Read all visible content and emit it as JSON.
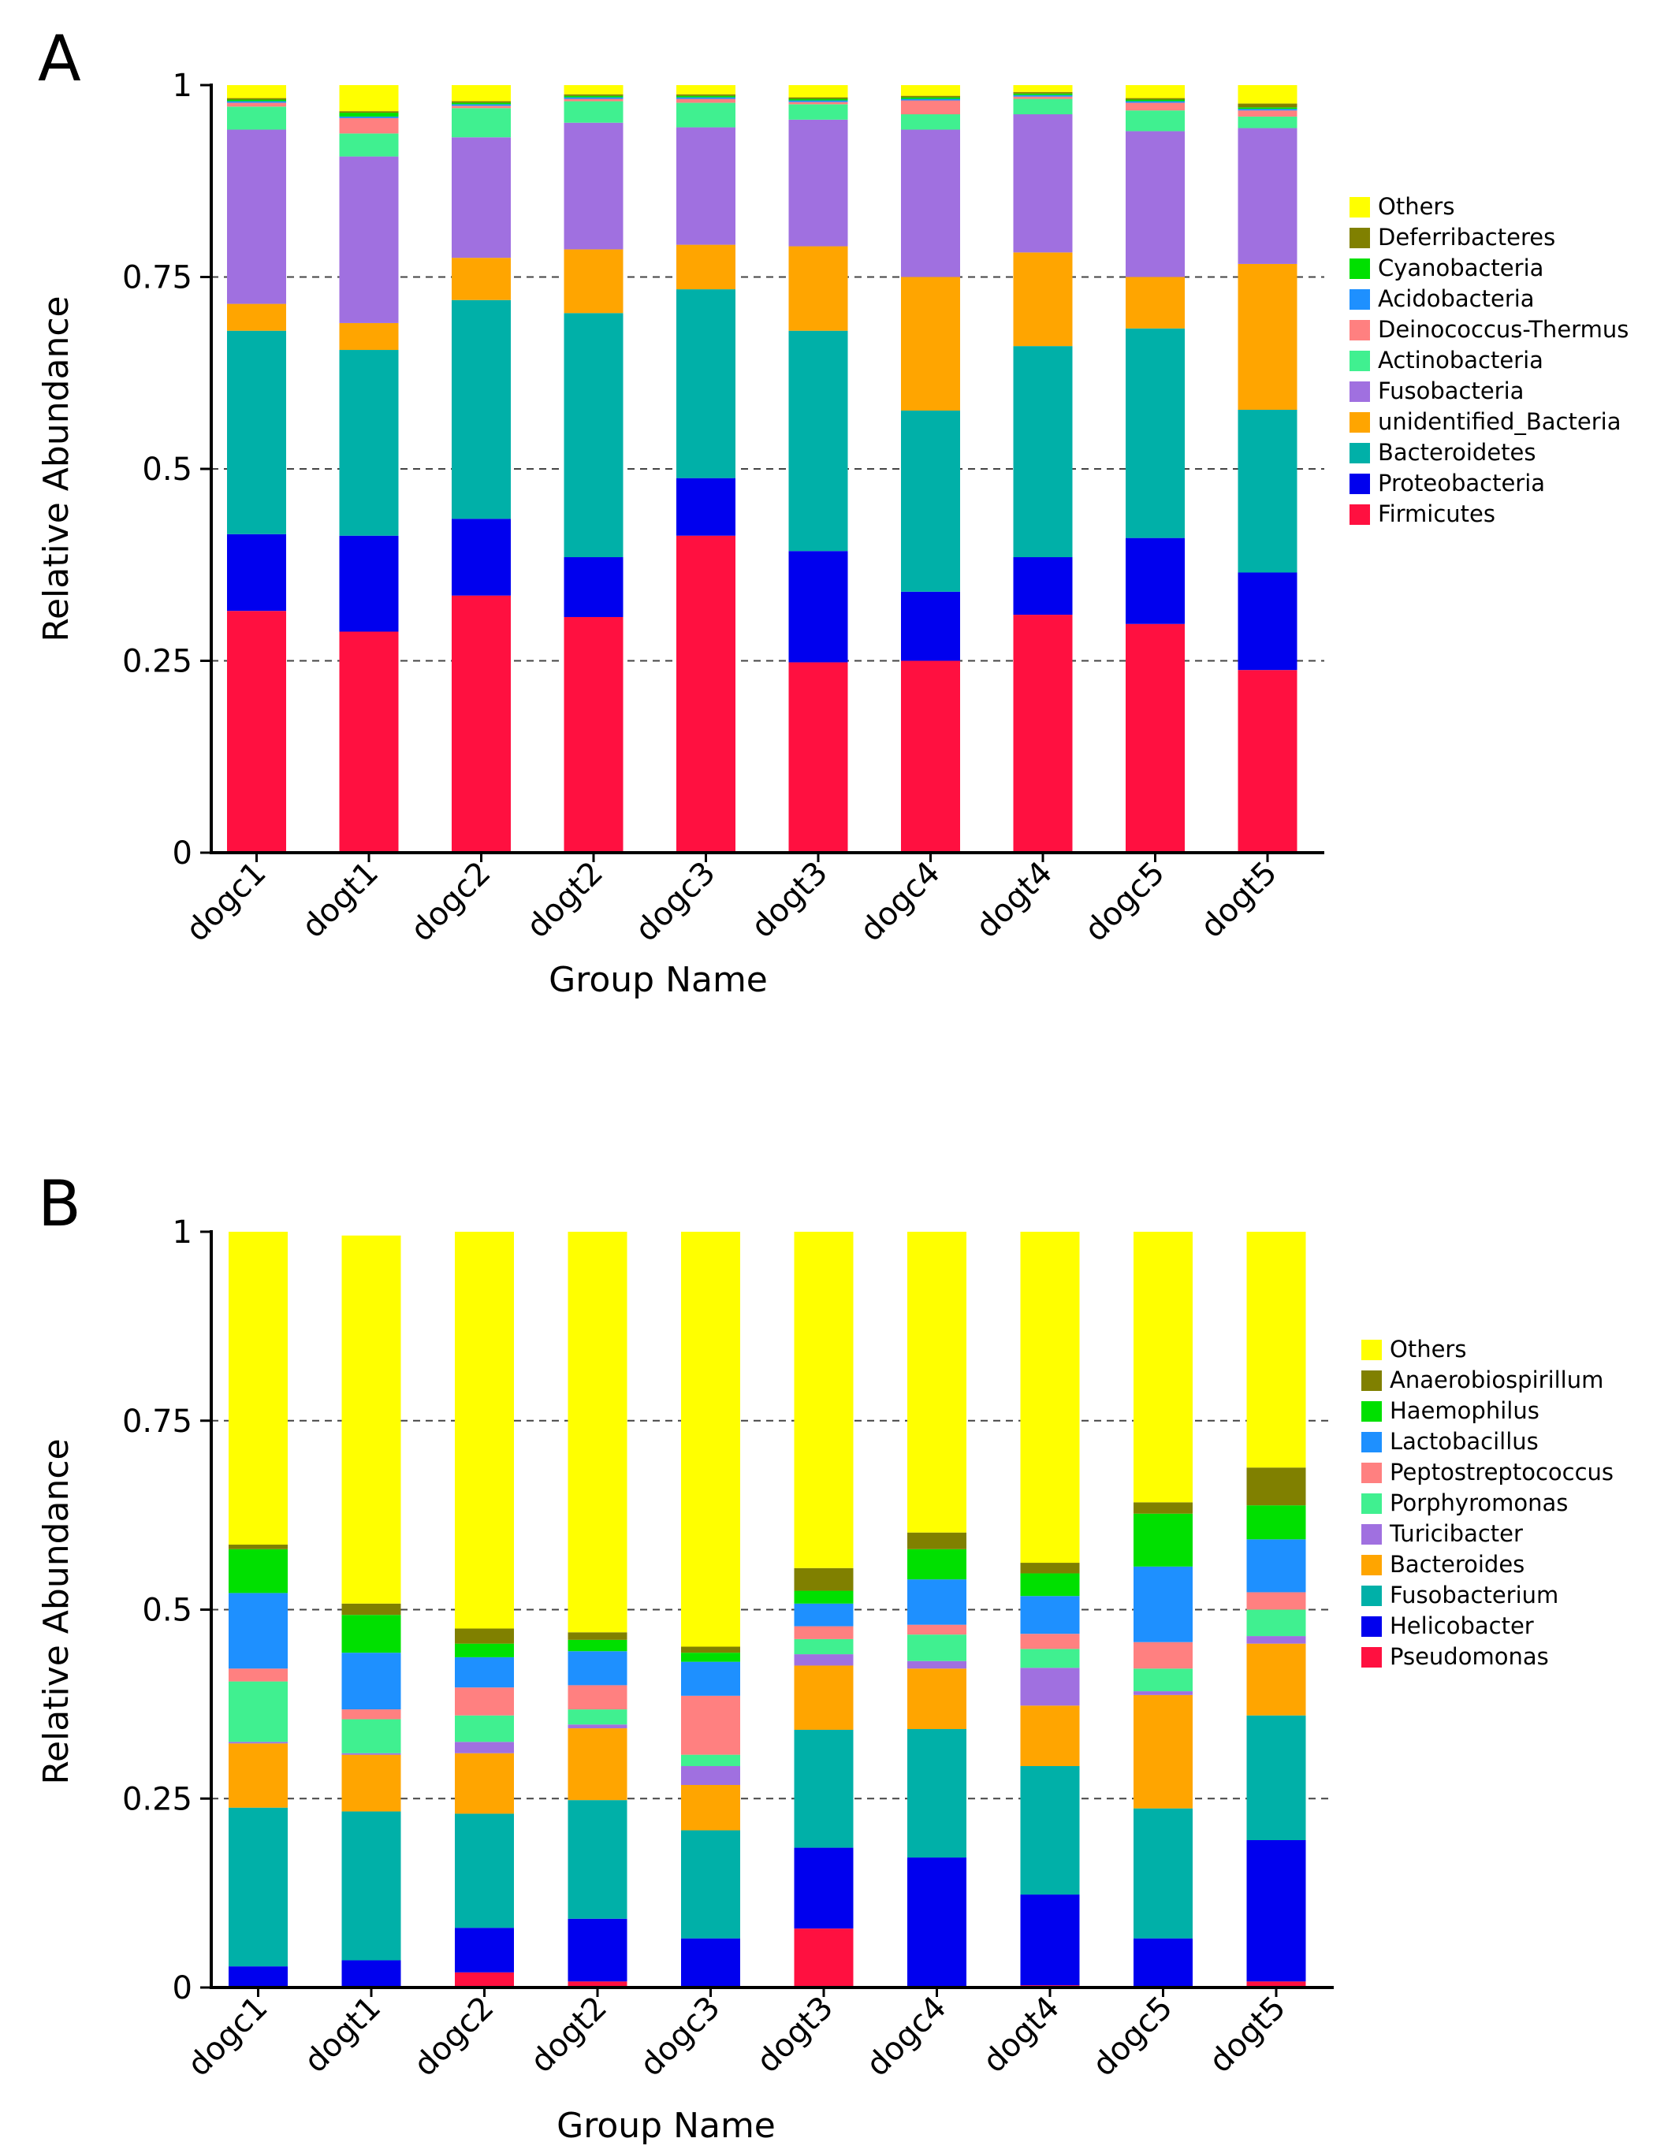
{
  "chart_data": [
    {
      "type": "bar",
      "stacked": true,
      "panel_label": "A",
      "title": "",
      "xlabel": "Group Name",
      "ylabel": "Relative Abundance",
      "ylim": [
        0,
        1
      ],
      "yticks": [
        0,
        0.25,
        0.5,
        0.75,
        1
      ],
      "ytick_labels": [
        "0",
        "0.25",
        "0.5",
        "0.75",
        "1"
      ],
      "grid": "dashed horizontal at 0.25, 0.5, 0.75",
      "legend_position": "right",
      "categories": [
        "dogc1",
        "dogt1",
        "dogc2",
        "dogt2",
        "dogc3",
        "dogt3",
        "dogc4",
        "dogt4",
        "dogc5",
        "dogt5"
      ],
      "series": [
        {
          "name": "Firmicutes",
          "color": "#ff1040",
          "values": [
            0.315,
            0.288,
            0.335,
            0.307,
            0.413,
            0.248,
            0.25,
            0.31,
            0.298,
            0.238
          ]
        },
        {
          "name": "Proteobacteria",
          "color": "#0000ee",
          "values": [
            0.1,
            0.125,
            0.1,
            0.078,
            0.075,
            0.145,
            0.09,
            0.075,
            0.112,
            0.127
          ]
        },
        {
          "name": "Bacteroidetes",
          "color": "#00b0a8",
          "values": [
            0.265,
            0.242,
            0.285,
            0.318,
            0.246,
            0.287,
            0.236,
            0.275,
            0.273,
            0.212
          ]
        },
        {
          "name": "unidentified_Bacteria",
          "color": "#ffa500",
          "values": [
            0.035,
            0.035,
            0.055,
            0.083,
            0.058,
            0.11,
            0.174,
            0.122,
            0.067,
            0.19
          ]
        },
        {
          "name": "Fusobacteria",
          "color": "#a070e0",
          "values": [
            0.227,
            0.217,
            0.157,
            0.165,
            0.153,
            0.165,
            0.192,
            0.18,
            0.19,
            0.177
          ]
        },
        {
          "name": "Actinobacteria",
          "color": "#40f090",
          "values": [
            0.03,
            0.03,
            0.038,
            0.028,
            0.032,
            0.02,
            0.02,
            0.02,
            0.027,
            0.015
          ]
        },
        {
          "name": "Deinococcus-Thermus",
          "color": "#ff8080",
          "values": [
            0.005,
            0.02,
            0.003,
            0.003,
            0.005,
            0.003,
            0.018,
            0.003,
            0.01,
            0.008
          ]
        },
        {
          "name": "Acidobacteria",
          "color": "#1e90ff",
          "values": [
            0.002,
            0.002,
            0.002,
            0.002,
            0.002,
            0.002,
            0.002,
            0.002,
            0.002,
            0.002
          ]
        },
        {
          "name": "Cyanobacteria",
          "color": "#00e000",
          "values": [
            0.002,
            0.005,
            0.002,
            0.002,
            0.002,
            0.002,
            0.002,
            0.002,
            0.002,
            0.002
          ]
        },
        {
          "name": "Deferribacteres",
          "color": "#808000",
          "values": [
            0.002,
            0.002,
            0.002,
            0.002,
            0.002,
            0.002,
            0.002,
            0.002,
            0.002,
            0.005
          ]
        },
        {
          "name": "Others",
          "color": "#ffff00",
          "values": [
            0.017,
            0.034,
            0.021,
            0.012,
            0.012,
            0.016,
            0.014,
            0.009,
            0.017,
            0.024
          ]
        }
      ]
    },
    {
      "type": "bar",
      "stacked": true,
      "panel_label": "B",
      "title": "",
      "xlabel": "Group Name",
      "ylabel": "Relative Abundance",
      "ylim": [
        0,
        1
      ],
      "yticks": [
        0,
        0.25,
        0.5,
        0.75,
        1
      ],
      "ytick_labels": [
        "0",
        "0.25",
        "0.5",
        "0.75",
        "1"
      ],
      "grid": "dashed horizontal at 0.25, 0.5, 0.75",
      "legend_position": "right",
      "categories": [
        "dogc1",
        "dogt1",
        "dogc2",
        "dogt2",
        "dogc3",
        "dogt3",
        "dogc4",
        "dogt4",
        "dogc5",
        "dogt5"
      ],
      "series": [
        {
          "name": "Pseudomonas",
          "color": "#ff1040",
          "values": [
            0.002,
            0.002,
            0.02,
            0.008,
            0.002,
            0.078,
            0.002,
            0.003,
            0.002,
            0.008
          ]
        },
        {
          "name": "Helicobacter",
          "color": "#0000ee",
          "values": [
            0.026,
            0.034,
            0.059,
            0.083,
            0.063,
            0.107,
            0.17,
            0.12,
            0.063,
            0.187
          ]
        },
        {
          "name": "Fusobacterium",
          "color": "#00b0a8",
          "values": [
            0.21,
            0.197,
            0.151,
            0.157,
            0.143,
            0.156,
            0.17,
            0.17,
            0.172,
            0.165
          ]
        },
        {
          "name": "Bacteroides",
          "color": "#ffa500",
          "values": [
            0.085,
            0.075,
            0.08,
            0.095,
            0.06,
            0.085,
            0.08,
            0.08,
            0.15,
            0.095
          ]
        },
        {
          "name": "Turicibacter",
          "color": "#a070e0",
          "values": [
            0.002,
            0.002,
            0.015,
            0.005,
            0.025,
            0.015,
            0.01,
            0.05,
            0.005,
            0.01
          ]
        },
        {
          "name": "Porphyromonas",
          "color": "#40f090",
          "values": [
            0.08,
            0.045,
            0.035,
            0.02,
            0.015,
            0.02,
            0.035,
            0.025,
            0.03,
            0.035
          ]
        },
        {
          "name": "Peptostreptococcus",
          "color": "#ff8080",
          "values": [
            0.017,
            0.013,
            0.037,
            0.032,
            0.078,
            0.017,
            0.013,
            0.02,
            0.035,
            0.023
          ]
        },
        {
          "name": "Lactobacillus",
          "color": "#1e90ff",
          "values": [
            0.1,
            0.075,
            0.04,
            0.045,
            0.045,
            0.03,
            0.06,
            0.05,
            0.1,
            0.07
          ]
        },
        {
          "name": "Haemophilus",
          "color": "#00e000",
          "values": [
            0.058,
            0.05,
            0.018,
            0.015,
            0.012,
            0.017,
            0.04,
            0.03,
            0.07,
            0.045
          ]
        },
        {
          "name": "Anaerobiospirillum",
          "color": "#808000",
          "values": [
            0.006,
            0.015,
            0.02,
            0.01,
            0.008,
            0.03,
            0.022,
            0.014,
            0.015,
            0.05
          ]
        },
        {
          "name": "Others",
          "color": "#ffff00",
          "values": [
            0.414,
            0.487,
            0.525,
            0.53,
            0.549,
            0.445,
            0.398,
            0.438,
            0.358,
            0.312
          ]
        }
      ]
    }
  ]
}
